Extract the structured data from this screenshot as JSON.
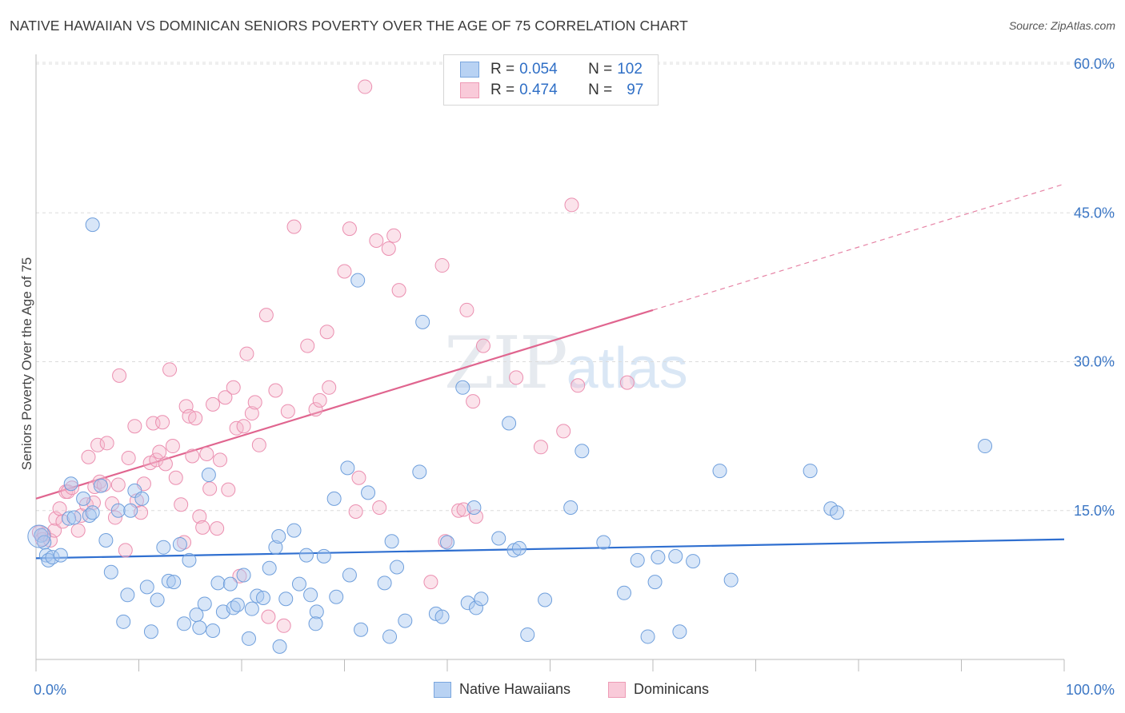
{
  "header": {
    "title": "NATIVE HAWAIIAN VS DOMINICAN SENIORS POVERTY OVER THE AGE OF 75 CORRELATION CHART",
    "source": "Source: ZipAtlas.com"
  },
  "legend": {
    "rows": [
      {
        "r_label": "R = ",
        "r_value": "0.054",
        "n_label": "N = ",
        "n_value": "102"
      },
      {
        "r_label": "R = ",
        "r_value": "0.474",
        "n_label": "N = ",
        "n_value": "97"
      }
    ]
  },
  "bottom_legend": {
    "items": [
      "Native Hawaiians",
      "Dominicans"
    ]
  },
  "watermark": {
    "zip": "ZIP",
    "atlas": "atlas"
  },
  "chart_data": {
    "type": "scatter",
    "title": "NATIVE HAWAIIAN VS DOMINICAN SENIORS POVERTY OVER THE AGE OF 75 CORRELATION CHART",
    "xlabel": "",
    "ylabel": "Seniors Poverty Over the Age of 75",
    "xlim": [
      0,
      100
    ],
    "ylim": [
      0,
      60
    ],
    "x_tick_labels": [
      "0.0%",
      "100.0%"
    ],
    "y_ticks": [
      15,
      30,
      45,
      60
    ],
    "y_tick_labels": [
      "15.0%",
      "30.0%",
      "45.0%",
      "60.0%"
    ],
    "grid": true,
    "legend_position": "top-center",
    "colors": {
      "native_hawaiians": "#a9c8f0",
      "native_hawaiians_line": "#2f6fd0",
      "dominicans": "#f5b8cc",
      "dominicans_line": "#e0658f",
      "tick_label": "#3b76c4"
    },
    "series": [
      {
        "name": "Native Hawaiians",
        "r": 0.054,
        "n": 102,
        "trend": {
          "x": [
            0,
            100
          ],
          "y": [
            10.2,
            12.1
          ]
        },
        "points": [
          [
            0.5,
            12.5
          ],
          [
            0.8,
            11.8
          ],
          [
            1,
            10.5
          ],
          [
            1.2,
            10
          ],
          [
            1.6,
            10.3
          ],
          [
            2.4,
            10.5
          ],
          [
            3.2,
            14.2
          ],
          [
            3.4,
            17.7
          ],
          [
            3.7,
            14.3
          ],
          [
            4.6,
            16.2
          ],
          [
            5.2,
            14.5
          ],
          [
            5.5,
            14.8
          ],
          [
            5.5,
            43.8
          ],
          [
            6.3,
            17.5
          ],
          [
            6.8,
            12
          ],
          [
            7.3,
            8.8
          ],
          [
            8,
            15
          ],
          [
            8.5,
            3.8
          ],
          [
            8.9,
            6.5
          ],
          [
            9.2,
            15
          ],
          [
            9.6,
            17
          ],
          [
            10.3,
            16.2
          ],
          [
            10.8,
            7.3
          ],
          [
            11.2,
            2.8
          ],
          [
            11.8,
            6
          ],
          [
            12.4,
            11.3
          ],
          [
            12.9,
            7.9
          ],
          [
            13.4,
            7.8
          ],
          [
            14,
            11.6
          ],
          [
            14.4,
            3.6
          ],
          [
            14.9,
            10
          ],
          [
            15.6,
            4.5
          ],
          [
            15.9,
            3.2
          ],
          [
            16.4,
            5.6
          ],
          [
            16.8,
            18.6
          ],
          [
            17.2,
            2.9
          ],
          [
            17.7,
            7.7
          ],
          [
            18.2,
            4.8
          ],
          [
            18.9,
            7.6
          ],
          [
            19.2,
            5.2
          ],
          [
            19.6,
            5.5
          ],
          [
            20.2,
            8.5
          ],
          [
            20.7,
            2.1
          ],
          [
            21,
            5.1
          ],
          [
            21.5,
            6.4
          ],
          [
            22.1,
            6.2
          ],
          [
            22.7,
            9.2
          ],
          [
            23.3,
            11.3
          ],
          [
            23.6,
            12.4
          ],
          [
            23.7,
            1.3
          ],
          [
            24.3,
            6.1
          ],
          [
            25.1,
            13
          ],
          [
            25.6,
            7.6
          ],
          [
            26.3,
            10.5
          ],
          [
            26.7,
            6.5
          ],
          [
            27.3,
            4.8
          ],
          [
            27.2,
            3.6
          ],
          [
            28,
            10.4
          ],
          [
            29,
            16.2
          ],
          [
            29.2,
            6.3
          ],
          [
            30.3,
            19.3
          ],
          [
            30.5,
            8.5
          ],
          [
            31.3,
            38.2
          ],
          [
            31.6,
            3
          ],
          [
            32.3,
            16.8
          ],
          [
            33.9,
            7.7
          ],
          [
            34.4,
            2.3
          ],
          [
            34.6,
            11.9
          ],
          [
            35.1,
            9.3
          ],
          [
            35.9,
            3.9
          ],
          [
            37.3,
            18.9
          ],
          [
            37.6,
            34
          ],
          [
            38.9,
            4.6
          ],
          [
            39.5,
            4.3
          ],
          [
            40,
            11.8
          ],
          [
            41.5,
            27.4
          ],
          [
            42,
            5.7
          ],
          [
            42.6,
            15.3
          ],
          [
            42.8,
            5.2
          ],
          [
            43.3,
            6.1
          ],
          [
            45,
            12.2
          ],
          [
            46,
            23.8
          ],
          [
            46.5,
            11
          ],
          [
            47,
            11.2
          ],
          [
            47.8,
            2.5
          ],
          [
            49.5,
            6
          ],
          [
            52,
            15.3
          ],
          [
            53.1,
            21
          ],
          [
            55.2,
            11.8
          ],
          [
            57.2,
            6.7
          ],
          [
            58.5,
            10
          ],
          [
            59.5,
            2.3
          ],
          [
            60.2,
            7.8
          ],
          [
            60.5,
            10.3
          ],
          [
            62.2,
            10.4
          ],
          [
            62.6,
            2.8
          ],
          [
            63.9,
            9.9
          ],
          [
            66.5,
            19
          ],
          [
            67.6,
            8
          ],
          [
            75.3,
            19
          ],
          [
            77.3,
            15.2
          ],
          [
            77.9,
            14.8
          ],
          [
            92.3,
            21.5
          ]
        ]
      },
      {
        "name": "Dominicans",
        "r": 0.474,
        "n": 97,
        "trend": {
          "x": [
            0,
            60
          ],
          "y": [
            16.2,
            35.2
          ]
        },
        "trend_dashed": {
          "x": [
            60,
            100
          ],
          "y": [
            35.2,
            47.9
          ]
        },
        "points": [
          [
            0.3,
            12.8
          ],
          [
            0.6,
            12.1
          ],
          [
            0.8,
            12.6
          ],
          [
            1.4,
            12
          ],
          [
            1.8,
            13
          ],
          [
            1.9,
            14.2
          ],
          [
            2.3,
            15.2
          ],
          [
            2.6,
            13.9
          ],
          [
            2.9,
            16.9
          ],
          [
            3.1,
            16.9
          ],
          [
            3.5,
            17.3
          ],
          [
            4.1,
            13
          ],
          [
            4.4,
            14.5
          ],
          [
            4.9,
            15.6
          ],
          [
            5.1,
            20.4
          ],
          [
            5.6,
            15.8
          ],
          [
            5.7,
            17.4
          ],
          [
            6,
            21.6
          ],
          [
            6.2,
            17.9
          ],
          [
            6.6,
            17.6
          ],
          [
            6.9,
            21.8
          ],
          [
            7.4,
            15.7
          ],
          [
            7.7,
            14.3
          ],
          [
            8,
            17.6
          ],
          [
            8.1,
            28.6
          ],
          [
            8.7,
            11
          ],
          [
            9,
            20.3
          ],
          [
            9.6,
            23.5
          ],
          [
            9.8,
            16
          ],
          [
            10.2,
            14.8
          ],
          [
            10.5,
            17.7
          ],
          [
            11.1,
            19.8
          ],
          [
            11.4,
            23.8
          ],
          [
            11.7,
            20.1
          ],
          [
            12,
            20.9
          ],
          [
            12.3,
            23.9
          ],
          [
            12.6,
            19.7
          ],
          [
            13,
            29.2
          ],
          [
            13.3,
            21.5
          ],
          [
            13.6,
            18.3
          ],
          [
            14.1,
            15.6
          ],
          [
            14.4,
            11.8
          ],
          [
            14.6,
            25.5
          ],
          [
            14.9,
            24.5
          ],
          [
            15.2,
            20.5
          ],
          [
            15.5,
            24.3
          ],
          [
            15.9,
            14.4
          ],
          [
            16.2,
            13.3
          ],
          [
            16.6,
            20.7
          ],
          [
            16.9,
            17.2
          ],
          [
            17.2,
            25.7
          ],
          [
            17.6,
            13.2
          ],
          [
            17.9,
            20.1
          ],
          [
            18.4,
            26.4
          ],
          [
            18.7,
            17.1
          ],
          [
            19.2,
            27.4
          ],
          [
            19.5,
            23.3
          ],
          [
            19.8,
            8.4
          ],
          [
            20.2,
            23.5
          ],
          [
            20.5,
            30.8
          ],
          [
            21,
            24.8
          ],
          [
            21.3,
            25.9
          ],
          [
            21.7,
            21.6
          ],
          [
            22.4,
            34.7
          ],
          [
            22.6,
            4.3
          ],
          [
            23.3,
            27.1
          ],
          [
            24.1,
            3.4
          ],
          [
            24.5,
            25
          ],
          [
            25.1,
            43.6
          ],
          [
            26.4,
            31.6
          ],
          [
            27.2,
            25.2
          ],
          [
            27.6,
            26.1
          ],
          [
            28.3,
            33
          ],
          [
            28.5,
            27.4
          ],
          [
            30,
            39.1
          ],
          [
            30.5,
            43.4
          ],
          [
            31.1,
            14.9
          ],
          [
            31.4,
            18.3
          ],
          [
            32,
            57.7
          ],
          [
            33.1,
            42.2
          ],
          [
            33.4,
            15.3
          ],
          [
            34.3,
            41.4
          ],
          [
            34.8,
            42.7
          ],
          [
            35.3,
            37.2
          ],
          [
            38.4,
            7.8
          ],
          [
            39.5,
            39.7
          ],
          [
            39.8,
            11.9
          ],
          [
            41.1,
            15
          ],
          [
            41.9,
            35.2
          ],
          [
            41.6,
            15.1
          ],
          [
            42.5,
            26
          ],
          [
            42.8,
            14.4
          ],
          [
            43.5,
            31.6
          ],
          [
            46.7,
            28.4
          ],
          [
            49.1,
            21.4
          ],
          [
            51.3,
            23
          ],
          [
            52.1,
            45.8
          ],
          [
            52.7,
            27.6
          ],
          [
            57.5,
            27.9
          ]
        ]
      }
    ]
  }
}
